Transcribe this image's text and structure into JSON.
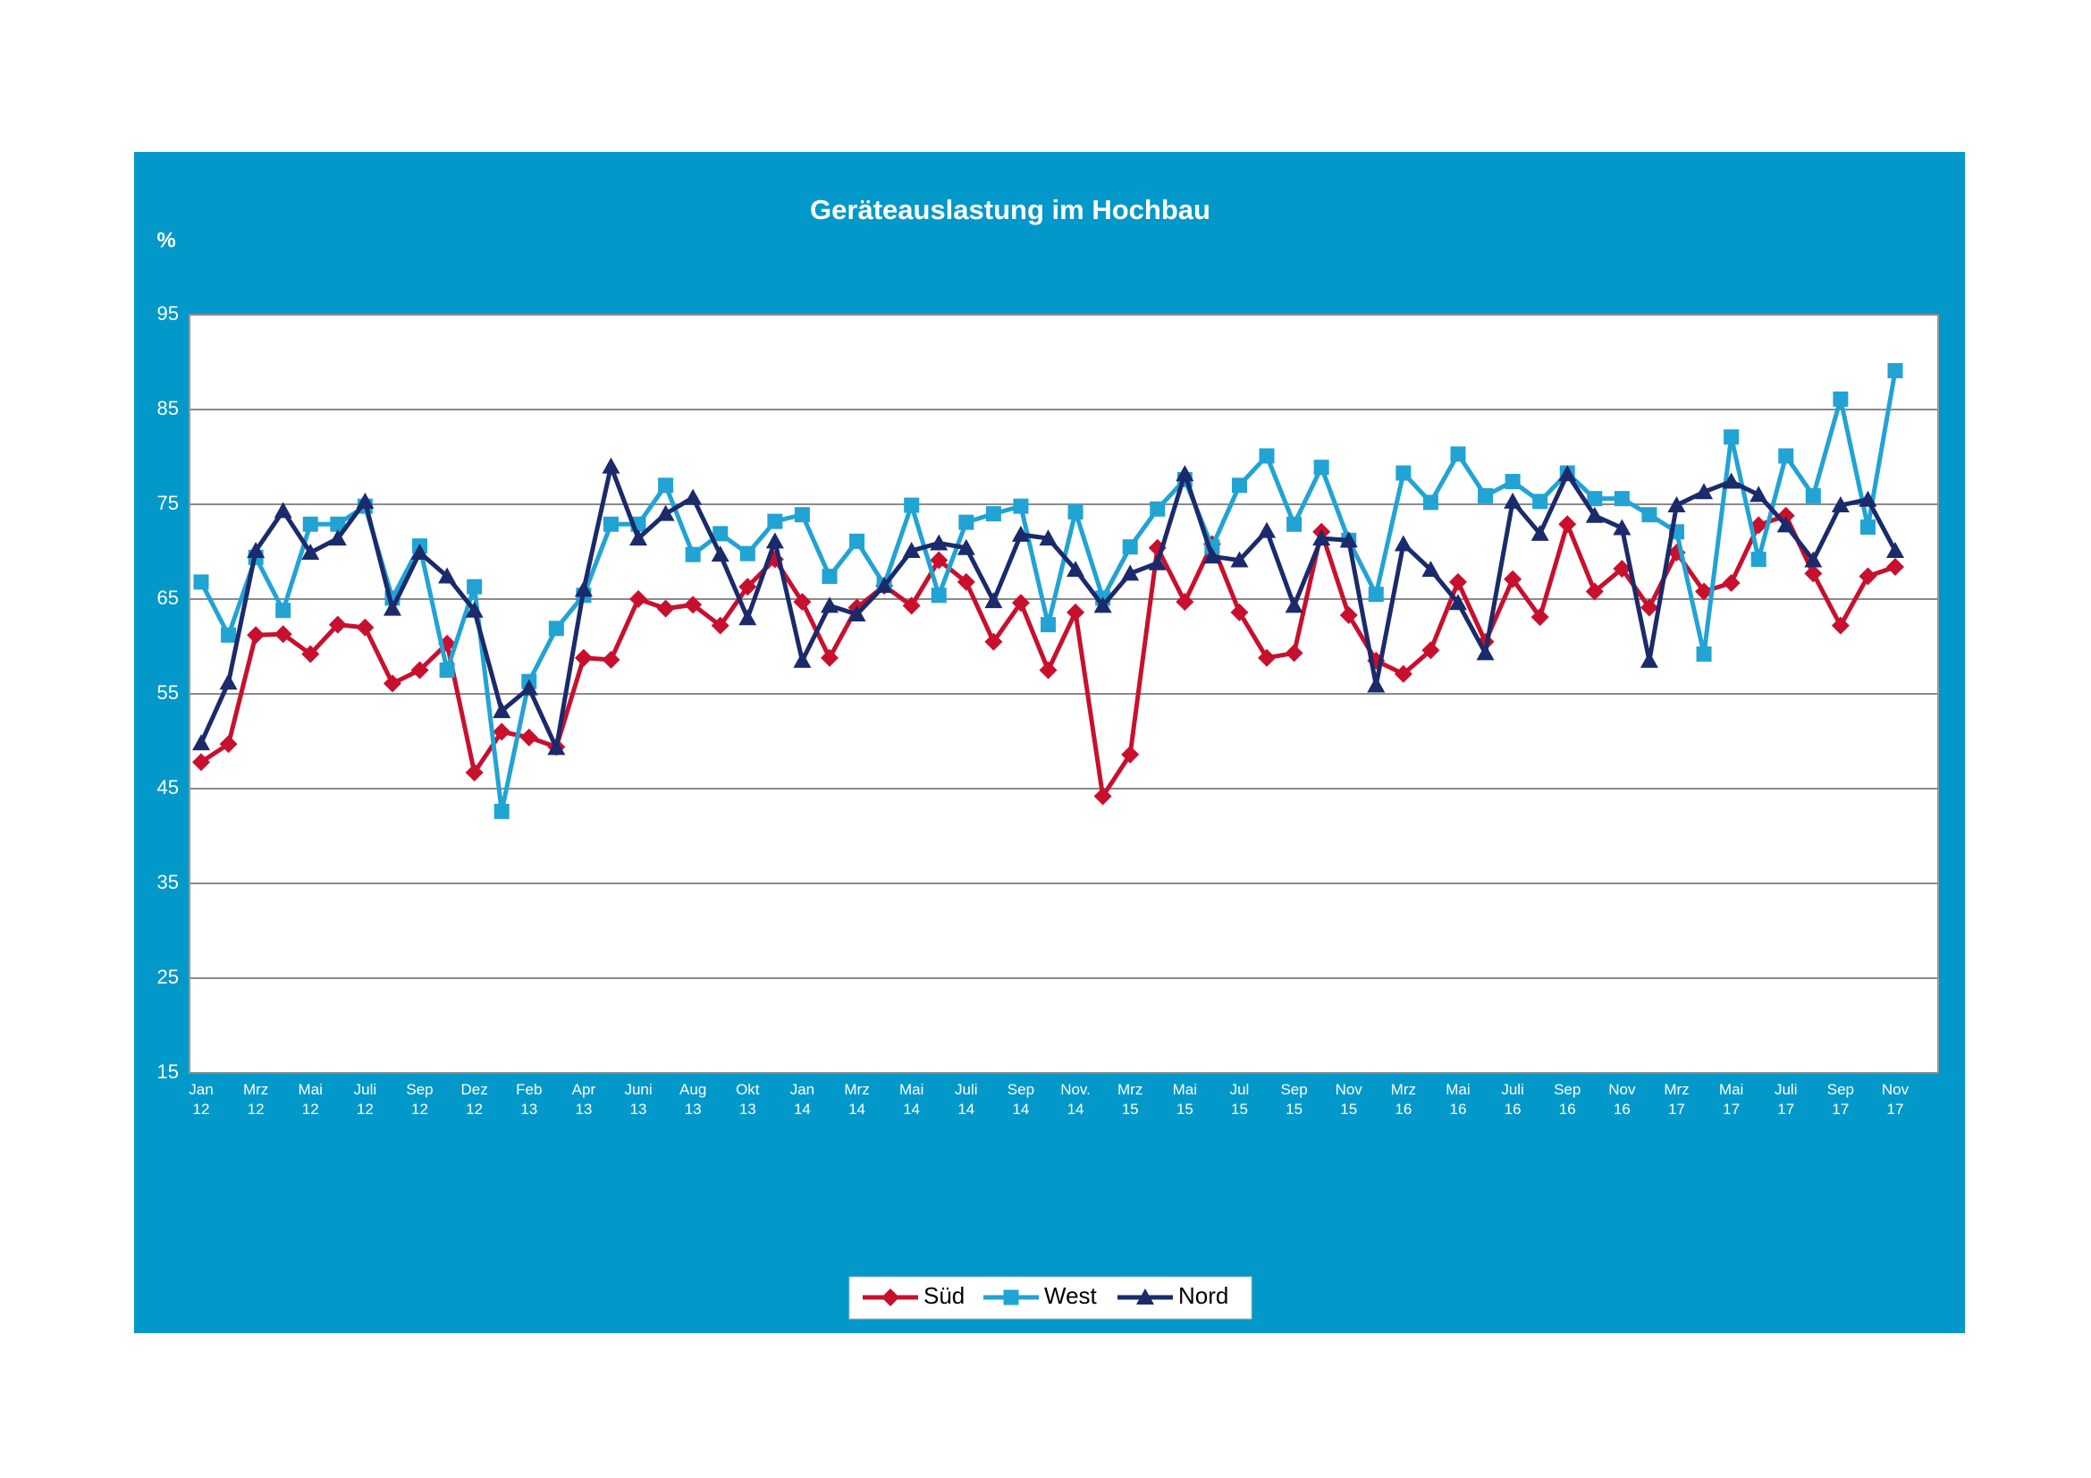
{
  "chart_data": {
    "type": "line",
    "title": "Geräteauslastung im Hochbau",
    "y_label": "%",
    "categories": [
      "Jan 12",
      null,
      "Mrz 12",
      null,
      "Mai 12",
      null,
      "Juli 12",
      null,
      "Sep 12",
      null,
      "Dez 12",
      null,
      "Feb 13",
      null,
      "Apr 13",
      null,
      "Juni 13",
      null,
      "Aug 13",
      null,
      "Okt 13",
      null,
      "Jan 14",
      null,
      "Mrz 14",
      null,
      "Mai 14",
      null,
      "Juli 14",
      null,
      "Sep 14",
      null,
      "Nov. 14",
      null,
      "Mrz 15",
      null,
      "Mai 15",
      null,
      "Jul 15",
      null,
      "Sep 15",
      null,
      "Nov 15",
      null,
      "Mrz 16",
      null,
      "Mai 16",
      null,
      "Juli 16",
      null,
      "Sep 16",
      null,
      "Nov 16",
      null,
      "Mrz 17",
      null,
      "Mai 17",
      null,
      "Juli 17",
      null,
      "Sep 17",
      null,
      "Nov 17"
    ],
    "series": [
      {
        "name": "Süd",
        "color": "#c8102e",
        "marker": "diamond",
        "values": [
          47.8,
          49.7,
          61.2,
          61.3,
          59.2,
          62.3,
          62.0,
          56.1,
          57.5,
          60.3,
          46.7,
          51.0,
          50.4,
          49.4,
          58.8,
          58.6,
          65.0,
          64.0,
          64.4,
          62.2,
          66.3,
          69.2,
          64.7,
          58.8,
          64.1,
          66.4,
          64.3,
          69.1,
          66.8,
          60.5,
          64.6,
          57.5,
          63.6,
          44.2,
          48.6,
          70.4,
          64.7,
          70.8,
          63.6,
          58.8,
          59.3,
          72.1,
          63.3,
          58.5,
          57.1,
          59.6,
          66.8,
          60.5,
          67.1,
          63.1,
          72.9,
          65.8,
          68.2,
          64.1,
          69.9,
          65.8,
          66.7,
          72.8,
          73.8,
          67.7,
          62.2,
          67.4,
          68.4
        ]
      },
      {
        "name": "West",
        "color": "#21a3d4",
        "marker": "square",
        "values": [
          66.8,
          61.2,
          69.4,
          63.8,
          72.9,
          72.9,
          74.8,
          65.1,
          70.6,
          57.5,
          66.3,
          42.6,
          56.3,
          61.9,
          65.4,
          72.9,
          72.9,
          77.0,
          69.7,
          71.9,
          69.8,
          73.2,
          73.9,
          67.4,
          71.1,
          66.5,
          74.9,
          65.4,
          73.1,
          74.0,
          74.8,
          62.3,
          74.2,
          65.1,
          70.5,
          74.5,
          77.6,
          70.5,
          77.0,
          80.1,
          72.9,
          78.9,
          71.2,
          65.5,
          78.3,
          75.2,
          80.3,
          75.9,
          77.4,
          75.3,
          78.3,
          75.6,
          75.6,
          73.9,
          72.1,
          59.2,
          82.1,
          69.2,
          80.1,
          75.9,
          86.1,
          72.6,
          89.1
        ]
      },
      {
        "name": "Nord",
        "color": "#1b2a6b",
        "marker": "triangle",
        "values": [
          49.8,
          56.2,
          70.1,
          74.3,
          69.9,
          71.4,
          75.3,
          64.0,
          69.9,
          67.4,
          63.8,
          53.2,
          55.6,
          49.3,
          66.0,
          79.0,
          71.4,
          74.0,
          75.7,
          69.7,
          63.0,
          71.1,
          58.5,
          64.3,
          63.4,
          66.4,
          70.1,
          70.9,
          70.4,
          64.8,
          71.8,
          71.4,
          68.1,
          64.3,
          67.7,
          68.8,
          78.2,
          69.5,
          69.1,
          72.2,
          64.3,
          71.4,
          71.2,
          55.9,
          70.8,
          68.1,
          64.6,
          59.3,
          75.3,
          71.9,
          78.2,
          73.8,
          72.5,
          58.5,
          74.9,
          76.3,
          77.4,
          76.0,
          72.8,
          69.1,
          74.9,
          75.5,
          70.1
        ]
      }
    ],
    "ylim": [
      15,
      95
    ],
    "yticks": [
      15,
      25,
      35,
      45,
      55,
      65,
      75,
      85,
      95
    ],
    "grid": true,
    "legend": "bottom",
    "background": "#0398ca"
  }
}
